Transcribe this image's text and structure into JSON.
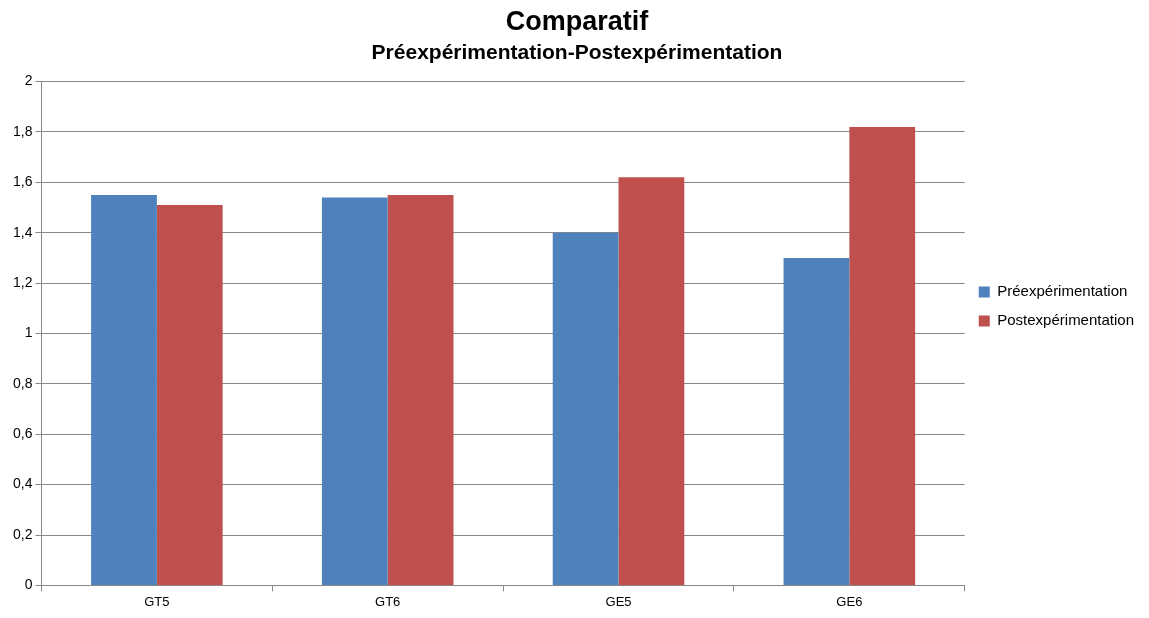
{
  "chart_data": {
    "type": "bar",
    "title": "Comparatif",
    "subtitle": "Préexpérimentation-Postexpérimentation",
    "categories": [
      "GT5",
      "GT6",
      "GE5",
      "GE6"
    ],
    "series": [
      {
        "name": "Préexpérimentation",
        "color": "#4f81bd",
        "values": [
          1.55,
          1.54,
          1.4,
          1.3
        ]
      },
      {
        "name": "Postexpérimentation",
        "color": "#c0504d",
        "values": [
          1.51,
          1.55,
          1.62,
          1.82
        ]
      }
    ],
    "ylim": [
      0,
      2
    ],
    "yticks": [
      0,
      {
        "value": 0.2,
        "label": "0,2"
      },
      {
        "value": 0.4,
        "label": "0,4"
      },
      {
        "value": 0.6,
        "label": "0,6"
      },
      {
        "value": 0.8,
        "label": "0,8"
      },
      1,
      {
        "value": 1.2,
        "label": "1,2"
      },
      {
        "value": 1.4,
        "label": "1,4"
      },
      {
        "value": 1.6,
        "label": "1,6"
      },
      {
        "value": 1.8,
        "label": "1,8"
      },
      2
    ],
    "grid": "y",
    "legend": "right"
  }
}
